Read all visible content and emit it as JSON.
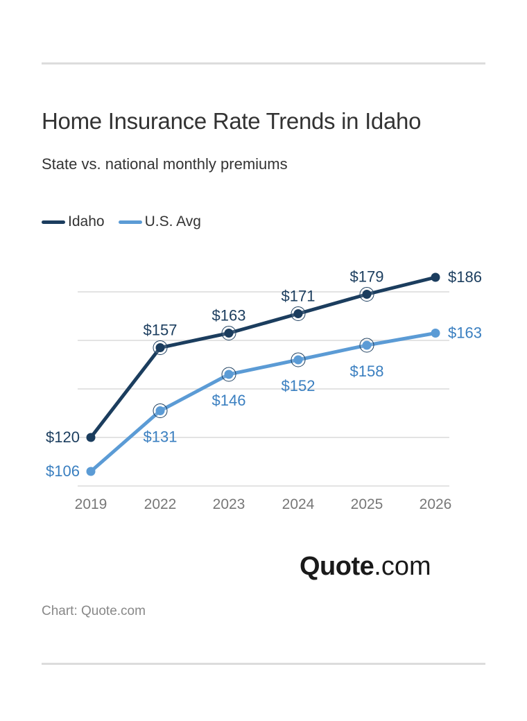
{
  "header": {
    "title": "Home Insurance Rate Trends in Idaho",
    "subtitle": "State vs. national monthly premiums"
  },
  "legend": [
    {
      "label": "Idaho",
      "color": "#1b3d5e"
    },
    {
      "label": "U.S. Avg",
      "color": "#5b9bd5"
    }
  ],
  "footer": {
    "logo_bold": "Quote",
    "logo_light": ".com",
    "source": "Chart: Quote.com"
  },
  "colors": {
    "idaho": "#1b3d5e",
    "us_line": "#5b9bd5",
    "us_label": "#3a7fc0",
    "grid": "#e3e3e3",
    "axis_label": "#777777"
  },
  "chart_data": {
    "type": "line",
    "title": "Home Insurance Rate Trends in Idaho",
    "subtitle": "State vs. national monthly premiums",
    "xlabel": "",
    "ylabel": "",
    "categories": [
      "2019",
      "2022",
      "2023",
      "2024",
      "2025",
      "2026"
    ],
    "series": [
      {
        "name": "Idaho",
        "values": [
          120,
          157,
          163,
          171,
          179,
          186
        ],
        "labels": [
          "$120",
          "$157",
          "$163",
          "$171",
          "$179",
          "$186"
        ]
      },
      {
        "name": "U.S. Avg",
        "values": [
          106,
          131,
          146,
          152,
          158,
          163
        ],
        "labels": [
          "$106",
          "$131",
          "$146",
          "$152",
          "$158",
          "$163"
        ]
      }
    ],
    "ylim": [
      100,
      190
    ],
    "gridlines": [
      100,
      120,
      140,
      160,
      180
    ],
    "grid": true,
    "y_tick_labels_visible": false,
    "legend_position": "top-left",
    "source": "Chart: Quote.com"
  }
}
